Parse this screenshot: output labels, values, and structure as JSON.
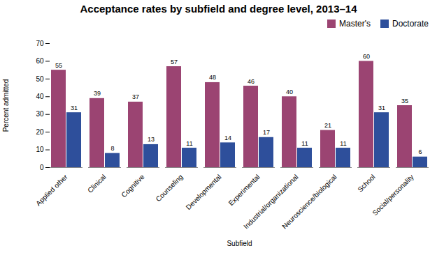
{
  "chart_data": {
    "type": "bar",
    "title": "Acceptance rates by subfield and degree level, 2013–14",
    "xlabel": "Subfield",
    "ylabel": "Percent admitted",
    "categories": [
      "Applied other",
      "Clinical",
      "Cognitive",
      "Counseling",
      "Developmental",
      "Experimental",
      "Industrial/organizational",
      "Neuroscience/biological",
      "School",
      "Social/personality"
    ],
    "series": [
      {
        "name": "Master's",
        "color": "#9B4472",
        "values": [
          55,
          39,
          37,
          57,
          48,
          46,
          40,
          21,
          60,
          35
        ]
      },
      {
        "name": "Doctorate",
        "color": "#2E4F9B",
        "values": [
          31,
          8,
          13,
          11,
          14,
          17,
          11,
          11,
          31,
          6
        ]
      }
    ],
    "ylim": [
      0,
      70
    ],
    "yticks": [
      0,
      10,
      20,
      30,
      40,
      50,
      60,
      70
    ],
    "grid": false,
    "legend": "upper right",
    "data_labels": true
  }
}
